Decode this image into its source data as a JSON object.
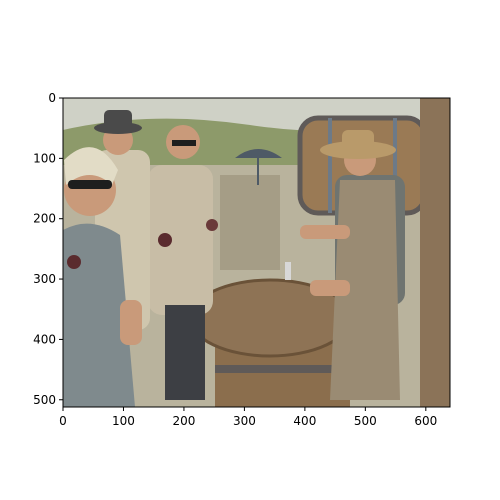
{
  "figure": {
    "x_ticks": [
      0,
      100,
      200,
      300,
      400,
      500,
      600
    ],
    "y_ticks": [
      0,
      100,
      200,
      300,
      400,
      500
    ],
    "x_range": [
      0,
      640
    ],
    "y_range": [
      0,
      512
    ],
    "y_inverted": true,
    "image_content": "wine-tasting-scene"
  },
  "colors": {
    "axis": "#000000",
    "sky": "#cfd1c6",
    "hills": "#8d9a6a",
    "ground": "#b9b39d",
    "barrel": "#9a7a55",
    "table": "#8b6e4d",
    "shirt_gray": "#6f7470",
    "apron": "#9a8b73",
    "skin": "#c99a7a",
    "hat": "#b99a6a"
  }
}
